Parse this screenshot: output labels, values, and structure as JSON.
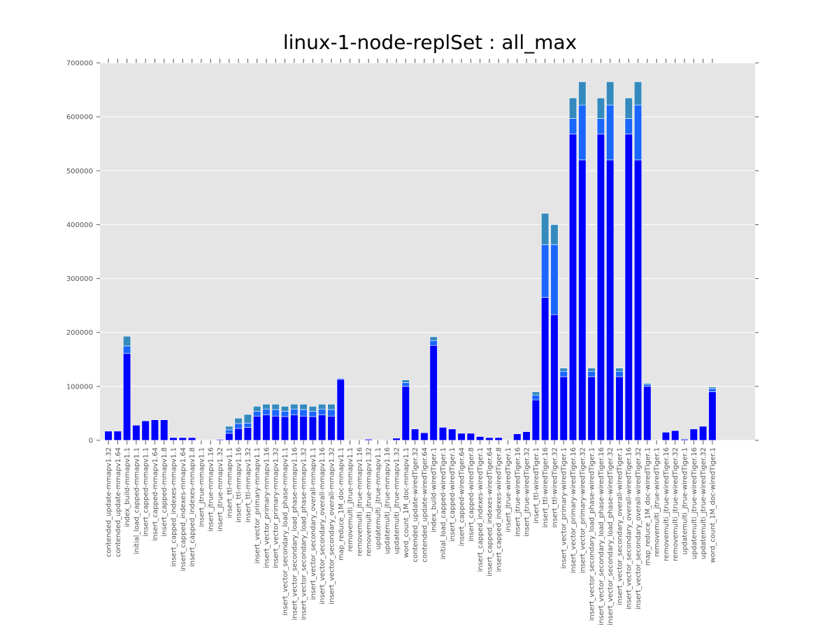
{
  "chart_data": {
    "type": "stacked_bar",
    "title": "linux-1-node-replSet : all_max",
    "categories": [
      "contended_update-mmapv1.32",
      "contended_update-mmapv1.64",
      "index_build-mmapv1.1",
      "initial_load_capped-mmapv1.1",
      "insert_capped-mmapv1.1",
      "insert_capped-mmapv1.64",
      "insert_capped-mmapv1.8",
      "insert_capped_indexes-mmapv1.1",
      "insert_capped_indexes-mmapv1.64",
      "insert_capped_indexes-mmapv1.8",
      "insert_jtrue-mmapv1.1",
      "insert_jtrue-mmapv1.16",
      "insert_jtrue-mmapv1.32",
      "insert_ttl-mmapv1.1",
      "insert_ttl-mmapv1.16",
      "insert_ttl-mmapv1.32",
      "insert_vector_primary-mmapv1.1",
      "insert_vector_primary-mmapv1.16",
      "insert_vector_primary-mmapv1.32",
      "insert_vector_secondary_load_phase-mmapv1.1",
      "insert_vector_secondary_load_phase-mmapv1.16",
      "insert_vector_secondary_load_phase-mmapv1.32",
      "insert_vector_secondary_overall-mmapv1.1",
      "insert_vector_secondary_overall-mmapv1.16",
      "insert_vector_secondary_overall-mmapv1.32",
      "map_reduce_1M_doc-mmapv1.1",
      "removemulti_jtrue-mmapv1.1",
      "removemulti_jtrue-mmapv1.16",
      "removemulti_jtrue-mmapv1.32",
      "updatemulti_jtrue-mmapv1.1",
      "updatemulti_jtrue-mmapv1.16",
      "updatemulti_jtrue-mmapv1.32",
      "word_count_1M_doc-mmapv1.1",
      "contended_update-wiredTiger.32",
      "contended_update-wiredTiger.64",
      "index_build-wiredTiger.1",
      "initial_load_capped-wiredTiger.1",
      "insert_capped-wiredTiger.1",
      "insert_capped-wiredTiger.64",
      "insert_capped-wiredTiger.8",
      "insert_capped_indexes-wiredTiger.1",
      "insert_capped_indexes-wiredTiger.64",
      "insert_capped_indexes-wiredTiger.8",
      "insert_jtrue-wiredTiger.1",
      "insert_jtrue-wiredTiger.16",
      "insert_jtrue-wiredTiger.32",
      "insert_ttl-wiredTiger.1",
      "insert_ttl-wiredTiger.16",
      "insert_ttl-wiredTiger.32",
      "insert_vector_primary-wiredTiger.1",
      "insert_vector_primary-wiredTiger.16",
      "insert_vector_primary-wiredTiger.32",
      "insert_vector_secondary_load_phase-wiredTiger.1",
      "insert_vector_secondary_load_phase-wiredTiger.16",
      "insert_vector_secondary_load_phase-wiredTiger.32",
      "insert_vector_secondary_overall-wiredTiger.1",
      "insert_vector_secondary_overall-wiredTiger.16",
      "insert_vector_secondary_overall-wiredTiger.32",
      "map_reduce_1M_doc-wiredTiger.1",
      "removemulti_jtrue-wiredTiger.1",
      "removemulti_jtrue-wiredTiger.16",
      "removemulti_jtrue-wiredTiger.32",
      "updatemulti_jtrue-wiredTiger.1",
      "updatemulti_jtrue-wiredTiger.16",
      "updatemulti_jtrue-wiredTiger.32",
      "word_count_1M_doc-wiredTiger.1"
    ],
    "series": [
      {
        "color": "#0000ff",
        "values": [
          17000,
          17000,
          161000,
          28000,
          36000,
          38000,
          38000,
          5000,
          5000,
          5000,
          500,
          500,
          1500,
          13000,
          22000,
          24000,
          45000,
          47000,
          45000,
          44000,
          47000,
          45000,
          44000,
          47000,
          45000,
          113000,
          0,
          0,
          2000,
          0,
          1000,
          4000,
          100000,
          21000,
          14000,
          176000,
          24000,
          21000,
          13000,
          13000,
          7000,
          5000,
          5000,
          0,
          12000,
          16000,
          75000,
          265000,
          233000,
          118000,
          568000,
          520000,
          118000,
          568000,
          520000,
          118000,
          568000,
          520000,
          100000,
          0,
          15000,
          18000,
          2000,
          21000,
          26000,
          90000
        ]
      },
      {
        "color": "#1a66ff",
        "values": [
          0,
          0,
          14000,
          0,
          0,
          0,
          0,
          0,
          0,
          0,
          0,
          0,
          0,
          6500,
          9000,
          8000,
          9000,
          11000,
          12000,
          10000,
          11000,
          12000,
          10000,
          11000,
          12000,
          2000,
          0,
          0,
          0,
          0,
          0,
          0,
          7000,
          0,
          0,
          9000,
          0,
          0,
          0,
          0,
          0,
          0,
          0,
          0,
          0,
          0,
          9000,
          98000,
          130000,
          10000,
          29000,
          102000,
          10000,
          29000,
          102000,
          10000,
          29000,
          102000,
          4000,
          0,
          0,
          0,
          0,
          0,
          0,
          6000
        ]
      },
      {
        "color": "#348abd",
        "values": [
          0,
          0,
          18000,
          0,
          0,
          0,
          0,
          0,
          0,
          0,
          0,
          0,
          0,
          6500,
          10000,
          16000,
          9000,
          9000,
          10000,
          9000,
          9000,
          10000,
          9000,
          9000,
          10000,
          1000,
          0,
          0,
          0,
          0,
          0,
          0,
          5000,
          0,
          0,
          7000,
          0,
          0,
          0,
          0,
          0,
          0,
          0,
          0,
          0,
          0,
          6000,
          58000,
          37000,
          6000,
          38000,
          43000,
          6000,
          38000,
          43000,
          6000,
          38000,
          43000,
          2000,
          0,
          0,
          0,
          0,
          0,
          0,
          3000
        ]
      }
    ],
    "ylim": [
      0,
      700000
    ],
    "yticks": [
      0,
      100000,
      200000,
      300000,
      400000,
      500000,
      600000,
      700000
    ],
    "grid": true
  }
}
